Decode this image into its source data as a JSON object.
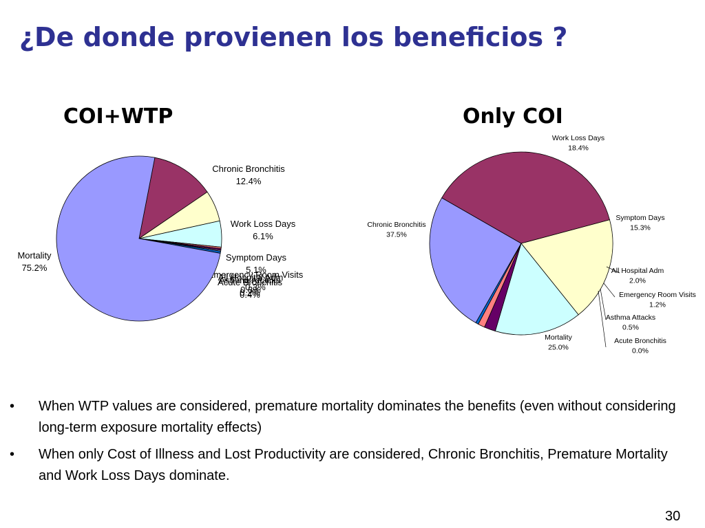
{
  "slide": {
    "title": "¿De donde provienen los beneficios ?",
    "page_number": "30"
  },
  "bullets": [
    "When WTP values are considered, premature mortality dominates the benefits (even without considering long-term exposure mortality effects)",
    "When only Cost of Illness and Lost Productivity are considered, Chronic Bronchitis, Premature Mortality and Work Loss Days dominate."
  ],
  "bullet_symbol": "•",
  "chart_data": [
    {
      "type": "pie",
      "title": "COI+WTP",
      "slices": [
        {
          "label": "Chronic Bronchitis",
          "value": 12.4,
          "display": "12.4%",
          "color": "#993366"
        },
        {
          "label": "Work Loss Days",
          "value": 6.1,
          "display": "6.1%",
          "color": "#FFFFCC"
        },
        {
          "label": "Symptom Days",
          "value": 5.1,
          "display": "5.1%",
          "color": "#CCFFFF"
        },
        {
          "label": "Emergency Room Visits",
          "value": 0.3,
          "display": "0.3%",
          "color": "#FF8080"
        },
        {
          "label": "All Hospital Adm",
          "value": 0.3,
          "display": "0.3%",
          "color": "#660066"
        },
        {
          "label": "Asthma Attacks",
          "value": 0.2,
          "display": "0.2%",
          "color": "#CCCCFF"
        },
        {
          "label": "Acute Bronchitis",
          "value": 0.4,
          "display": "0.4%",
          "color": "#0066CC"
        },
        {
          "label": "Mortality",
          "value": 75.2,
          "display": "75.2%",
          "color": "#9999FF"
        }
      ]
    },
    {
      "type": "pie",
      "title": "Only COI",
      "slices": [
        {
          "label": "Work Loss Days",
          "value": 18.4,
          "display": "18.4%",
          "color": "#FFFFCC"
        },
        {
          "label": "Symptom Days",
          "value": 15.3,
          "display": "15.3%",
          "color": "#CCFFFF"
        },
        {
          "label": "All Hospital Adm",
          "value": 2.0,
          "display": "2.0%",
          "color": "#660066"
        },
        {
          "label": "Emergency Room Visits",
          "value": 1.2,
          "display": "1.2%",
          "color": "#FF8080"
        },
        {
          "label": "Asthma Attacks",
          "value": 0.5,
          "display": "0.5%",
          "color": "#0066CC"
        },
        {
          "label": "Acute Bronchitis",
          "value": 0.0,
          "display": "0.0%",
          "color": "#CCCCFF"
        },
        {
          "label": "Mortality",
          "value": 25.0,
          "display": "25.0%",
          "color": "#9999FF"
        },
        {
          "label": "Chronic Bronchitis",
          "value": 37.5,
          "display": "37.5%",
          "color": "#993366"
        }
      ]
    }
  ]
}
